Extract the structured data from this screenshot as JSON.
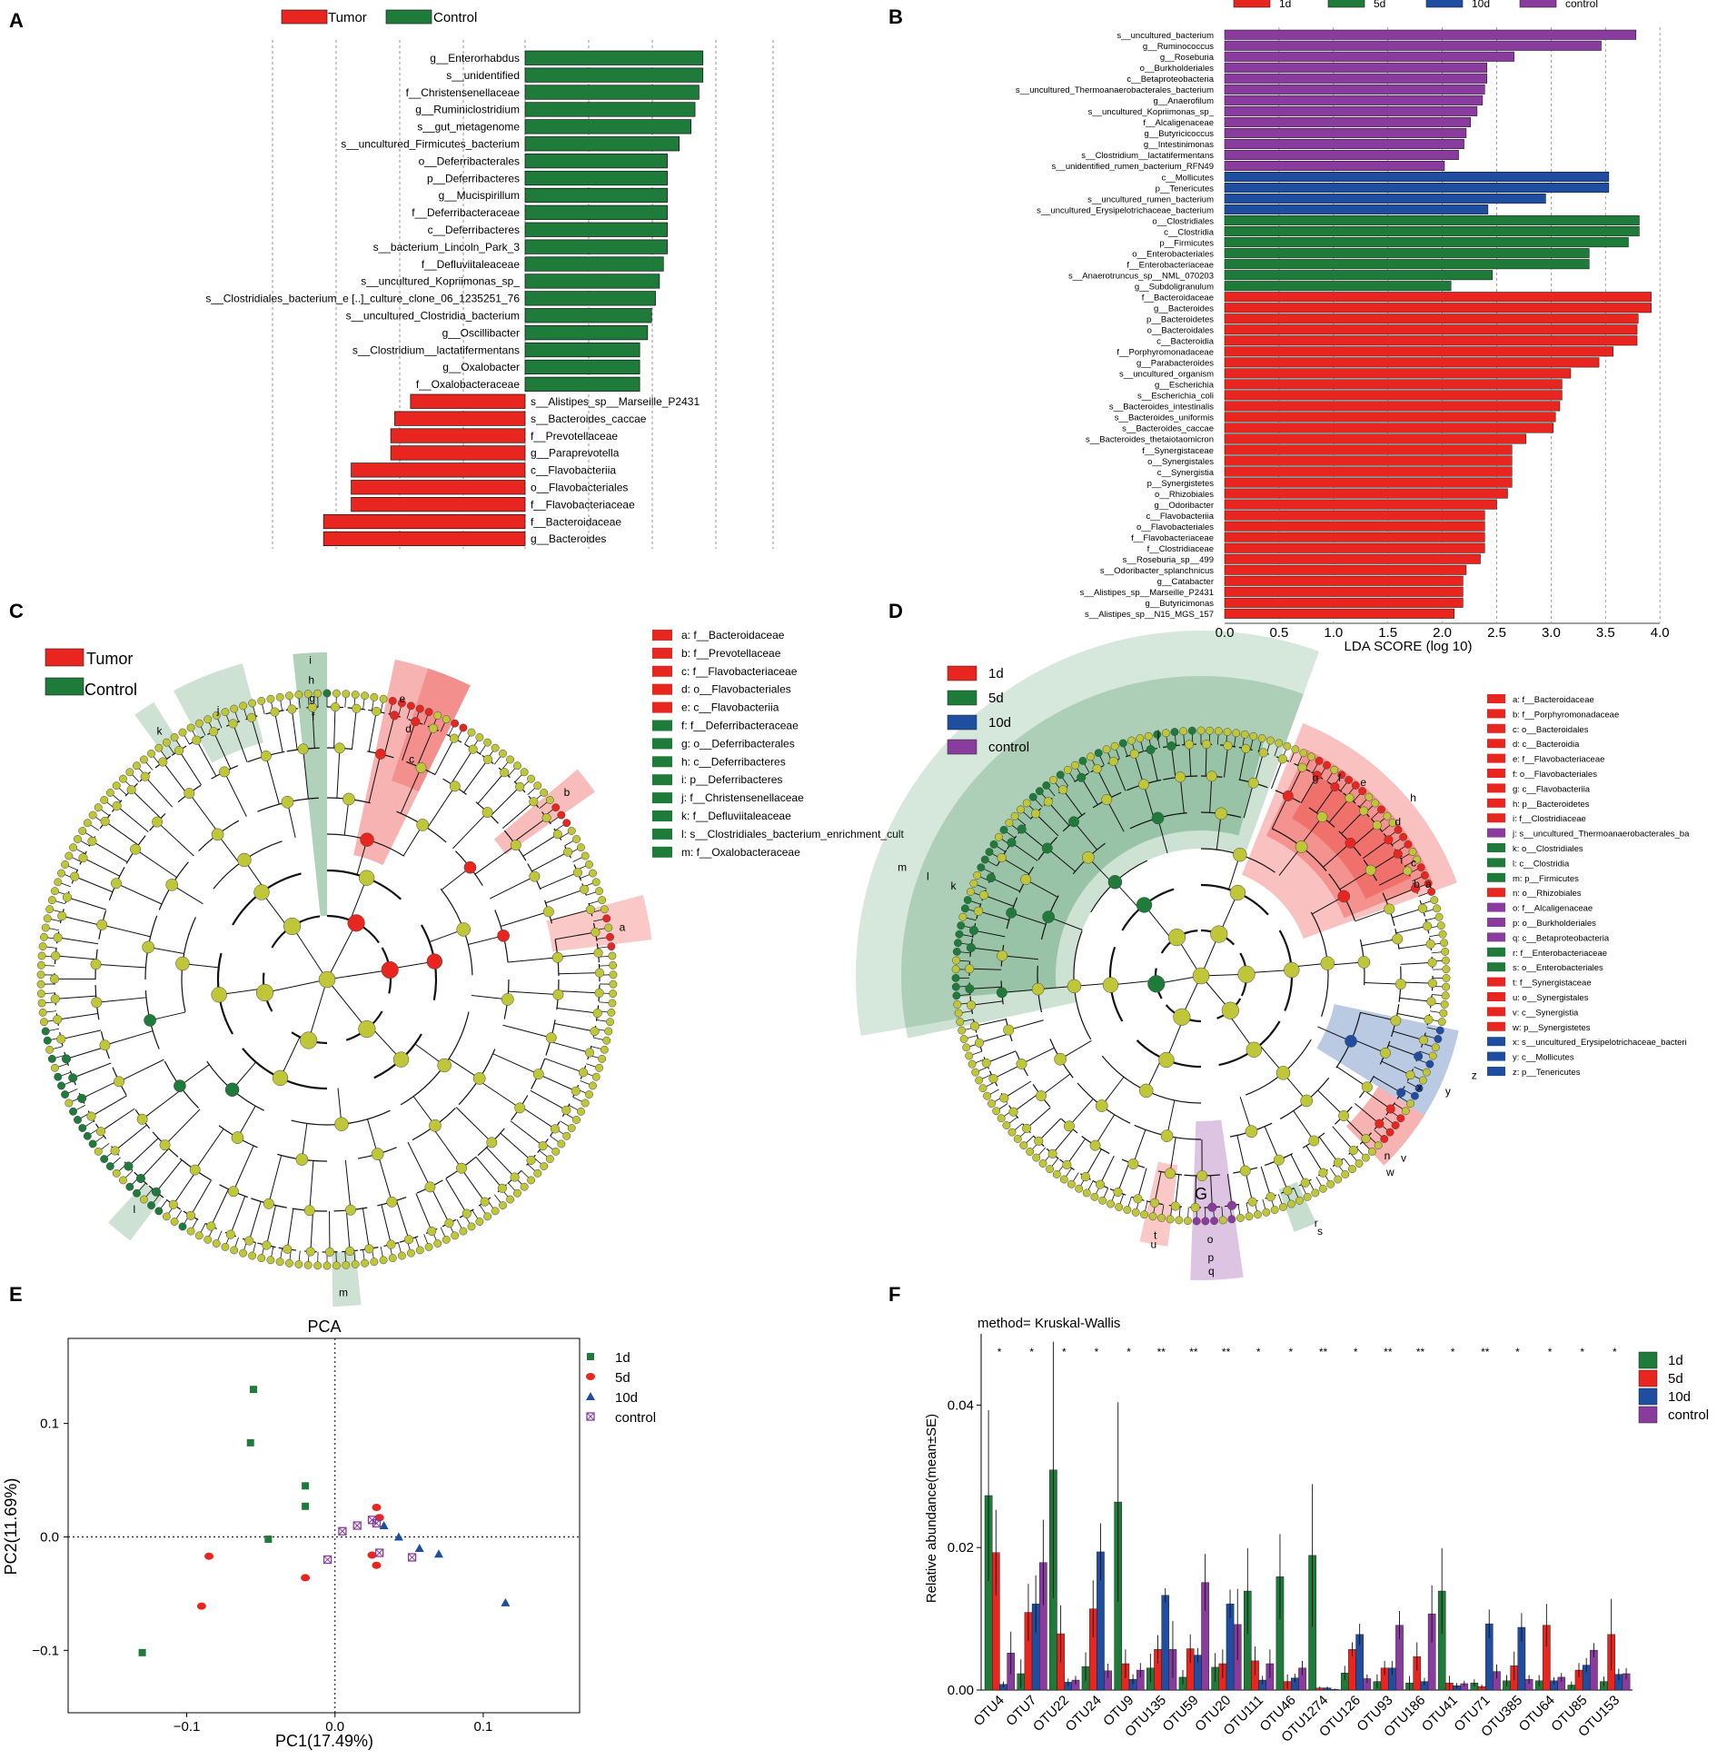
{
  "panels": {
    "A": "A",
    "B": "B",
    "C": "C",
    "D": "D",
    "E": "E",
    "F": "F"
  },
  "colors": {
    "green": "#1e7b3a",
    "red": "#e8251f",
    "blue": "#1f4ea1",
    "purple": "#8a3c9e",
    "olive": "#bfc637"
  },
  "chart_data": [
    {
      "id": "A",
      "type": "bar",
      "title": "",
      "legend": [
        "Tumor",
        "Control"
      ],
      "series": [
        {
          "name": "Control",
          "categories": [
            "g__Enterorhabdus",
            "s__unidentified",
            "f__Christensenellaceae",
            "g__Ruminiclostridium",
            "s__gut_metagenome",
            "s__uncultured_Firmicutes_bacterium",
            "o__Deferribacterales",
            "p__Deferribacteres",
            "g__Mucispirillum",
            "f__Deferribacteraceae",
            "c__Deferribacteres",
            "s__bacterium_Lincoln_Park_3",
            "f__Defluviitaleaceae",
            "s__uncultured_Kopriimonas_sp_",
            "s__Clostridiales_bacterium_e [..]_culture_clone_06_1235251_76",
            "s__uncultured_Clostridia_bacterium",
            "g__Oscillibacter",
            "s__Clostridium__lactatifermentans",
            "g__Oxalobacter",
            "f__Oxalobacteraceae"
          ],
          "values": [
            4.5,
            4.5,
            4.4,
            4.3,
            4.2,
            3.9,
            3.6,
            3.6,
            3.6,
            3.6,
            3.6,
            3.6,
            3.5,
            3.4,
            3.3,
            3.2,
            3.1,
            2.9,
            2.9,
            2.9
          ]
        },
        {
          "name": "Tumor",
          "categories": [
            "s__Alistipes_sp__Marseille_P2431",
            "s__Bacteroides_caccae",
            "f__Prevotellaceae",
            "g__Paraprevotella",
            "c__Flavobacteriia",
            "o__Flavobacteriales",
            "f__Flavobacteriaceae",
            "f__Bacteroidaceae",
            "g__Bacteroides"
          ],
          "values": [
            2.9,
            3.3,
            3.4,
            3.4,
            4.4,
            4.4,
            4.4,
            5.1,
            5.1
          ]
        }
      ]
    },
    {
      "id": "B",
      "type": "bar",
      "xlabel": "LDA SCORE (log 10)",
      "xlim": [
        0,
        4.0
      ],
      "ticks": [
        "0.0",
        "0.5",
        "1.0",
        "1.5",
        "2.0",
        "2.5",
        "3.0",
        "3.5",
        "4.0"
      ],
      "legend": [
        "1d",
        "5d",
        "10d",
        "control"
      ],
      "categories": [
        "s__uncultured_bacterium",
        "g__Ruminococcus",
        "g__Roseburia",
        "o__Burkholderiales",
        "c__Betaproteobacteria",
        "s__uncultured_Thermoanaerobacterales_bacterium",
        "g__Anaerofilum",
        "s__uncultured_Kopriimonas_sp_",
        "f__Alcaligenaceae",
        "g__Butyricicoccus",
        "g__Intestinimonas",
        "s__Clostridium__lactatifermentans",
        "s__unidentified_rumen_bacterium_RFN49",
        "c__Mollicutes",
        "p__Tenericutes",
        "s__uncultured_rumen_bacterium",
        "s__uncultured_Erysipelotrichaceae_bacterium",
        "o__Clostridiales",
        "c__Clostridia",
        "p__Firmicutes",
        "o__Enterobacteriales",
        "f__Enterobacteriaceae",
        "s__Anaerotruncus_sp__NML_070203",
        "g__Subdoligranulum",
        "f__Bacteroidaceae",
        "g__Bacteroides",
        "p__Bacteroidetes",
        "o__Bacteroidales",
        "c__Bacteroidia",
        "f__Porphyromonadaceae",
        "g__Parabacteroides",
        "s__uncultured_organism",
        "g__Escherichia",
        "s__Escherichia_coli",
        "s__Bacteroides_intestinalis",
        "s__Bacteroides_uniformis",
        "s__Bacteroides_caccae",
        "s__Bacteroides_thetaiotaomicron",
        "f__Synergistaceae",
        "o__Synergistales",
        "c__Synergistia",
        "p__Synergistetes",
        "o__Rhizobiales",
        "g__Odoribacter",
        "c__Flavobacteriia",
        "o__Flavobacteriales",
        "f__Flavobacteriaceae",
        "f__Clostridiaceae",
        "s__Roseburia_sp__499",
        "s__Odoribacter_splanchnicus",
        "g__Catabacter",
        "s__Alistipes_sp__Marseille_P2431",
        "g__Butyricimonas",
        "s__Alistipes_sp__N15_MGS_157"
      ],
      "values": [
        3.78,
        3.46,
        2.66,
        2.41,
        2.41,
        2.39,
        2.37,
        2.32,
        2.26,
        2.22,
        2.2,
        2.15,
        2.02,
        3.53,
        3.53,
        2.95,
        2.42,
        3.81,
        3.81,
        3.71,
        3.35,
        3.35,
        2.46,
        2.08,
        3.92,
        3.92,
        3.8,
        3.79,
        3.79,
        3.57,
        3.44,
        3.18,
        3.1,
        3.1,
        3.08,
        3.04,
        3.02,
        2.77,
        2.64,
        2.64,
        2.64,
        2.64,
        2.6,
        2.5,
        2.39,
        2.39,
        2.39,
        2.39,
        2.35,
        2.22,
        2.19,
        2.19,
        2.19,
        2.11
      ],
      "groups": [
        "control",
        "control",
        "control",
        "control",
        "control",
        "control",
        "control",
        "control",
        "control",
        "control",
        "control",
        "control",
        "control",
        "10d",
        "10d",
        "10d",
        "10d",
        "5d",
        "5d",
        "5d",
        "5d",
        "5d",
        "5d",
        "5d",
        "1d",
        "1d",
        "1d",
        "1d",
        "1d",
        "1d",
        "1d",
        "1d",
        "1d",
        "1d",
        "1d",
        "1d",
        "1d",
        "1d",
        "1d",
        "1d",
        "1d",
        "1d",
        "1d",
        "1d",
        "1d",
        "1d",
        "1d",
        "1d",
        "1d",
        "1d",
        "1d",
        "1d",
        "1d",
        "1d"
      ]
    },
    {
      "id": "C",
      "type": "cladogram",
      "legend_groups": [
        "Tumor",
        "Control"
      ],
      "clade_keys": [
        {
          "key": "a: f__Bacteroidaceae",
          "group": "Tumor"
        },
        {
          "key": "b: f__Prevotellaceae",
          "group": "Tumor"
        },
        {
          "key": "c: f__Flavobacteriaceae",
          "group": "Tumor"
        },
        {
          "key": "d: o__Flavobacteriales",
          "group": "Tumor"
        },
        {
          "key": "e: c__Flavobacteriia",
          "group": "Tumor"
        },
        {
          "key": "f: f__Deferribacteraceae",
          "group": "Control"
        },
        {
          "key": "g: o__Deferribacterales",
          "group": "Control"
        },
        {
          "key": "h: c__Deferribacteres",
          "group": "Control"
        },
        {
          "key": "i: p__Deferribacteres",
          "group": "Control"
        },
        {
          "key": "j: f__Christensenellaceae",
          "group": "Control"
        },
        {
          "key": "k: f__Defluviitaleaceae",
          "group": "Control"
        },
        {
          "key": "l: s__Clostridiales_bacterium_enrichment_cult",
          "group": "Control"
        },
        {
          "key": "m: f__Oxalobacteraceae",
          "group": "Control"
        }
      ],
      "sector_letters": [
        "a",
        "b",
        "c",
        "d",
        "e",
        "f",
        "g",
        "h",
        "i",
        "j",
        "k",
        "l",
        "m"
      ]
    },
    {
      "id": "D",
      "type": "cladogram",
      "legend_groups": [
        "1d",
        "5d",
        "10d",
        "control"
      ],
      "clade_keys": [
        {
          "key": "a: f__Bacteroidaceae",
          "group": "1d"
        },
        {
          "key": "b: f__Porphyromonadaceae",
          "group": "1d"
        },
        {
          "key": "c: o__Bacteroidales",
          "group": "1d"
        },
        {
          "key": "d: c__Bacteroidia",
          "group": "1d"
        },
        {
          "key": "e: f__Flavobacteriaceae",
          "group": "1d"
        },
        {
          "key": "f: o__Flavobacteriales",
          "group": "1d"
        },
        {
          "key": "g: c__Flavobacteriia",
          "group": "1d"
        },
        {
          "key": "h: p__Bacteroidetes",
          "group": "1d"
        },
        {
          "key": "i: f__Clostridiaceae",
          "group": "1d"
        },
        {
          "key": "j: s__uncultured_Thermoanaerobacterales_ba",
          "group": "control"
        },
        {
          "key": "k: o__Clostridiales",
          "group": "5d"
        },
        {
          "key": "l: c__Clostridia",
          "group": "5d"
        },
        {
          "key": "m: p__Firmicutes",
          "group": "5d"
        },
        {
          "key": "n: o__Rhizobiales",
          "group": "1d"
        },
        {
          "key": "o: f__Alcaligenaceae",
          "group": "control"
        },
        {
          "key": "p: o__Burkholderiales",
          "group": "control"
        },
        {
          "key": "q: c__Betaproteobacteria",
          "group": "control"
        },
        {
          "key": "r: f__Enterobacteriaceae",
          "group": "5d"
        },
        {
          "key": "s: o__Enterobacteriales",
          "group": "5d"
        },
        {
          "key": "t: f__Synergistaceae",
          "group": "1d"
        },
        {
          "key": "u: o__Synergistales",
          "group": "1d"
        },
        {
          "key": "v: c__Synergistia",
          "group": "1d"
        },
        {
          "key": "w: p__Synergistetes",
          "group": "1d"
        },
        {
          "key": "x: s__uncultured_Erysipelotrichaceae_bacteri",
          "group": "10d"
        },
        {
          "key": "y: c__Mollicutes",
          "group": "10d"
        },
        {
          "key": "z: p__Tenericutes",
          "group": "10d"
        }
      ],
      "sector_letters": [
        "a",
        "b",
        "c",
        "d",
        "e",
        "f",
        "g",
        "h",
        "i",
        "j",
        "k",
        "l",
        "m",
        "n",
        "o",
        "p",
        "q",
        "r",
        "s",
        "t",
        "u",
        "v",
        "w",
        "x",
        "y",
        "z"
      ],
      "annotation": "G"
    },
    {
      "id": "E",
      "type": "scatter",
      "title": "PCA",
      "xlabel": "PC1(17.49%)",
      "ylabel": "PC2(11.69%)",
      "xlim": [
        -0.18,
        0.165
      ],
      "ylim": [
        -0.155,
        0.175
      ],
      "xticks": [
        -0.1,
        0.0,
        0.1
      ],
      "xtick_labels": [
        "−0.1",
        "0.0",
        "0.1"
      ],
      "yticks": [
        -0.1,
        0.0,
        0.1
      ],
      "ytick_labels": [
        "−0.1",
        "0.0",
        "0.1"
      ],
      "series": [
        {
          "name": "1d",
          "marker": "square",
          "points": [
            [
              -0.055,
              0.13
            ],
            [
              -0.057,
              0.083
            ],
            [
              -0.02,
              0.045
            ],
            [
              -0.02,
              0.027
            ],
            [
              -0.045,
              -0.002
            ],
            [
              -0.13,
              -0.102
            ]
          ]
        },
        {
          "name": "5d",
          "marker": "circle",
          "points": [
            [
              -0.085,
              -0.017
            ],
            [
              -0.09,
              -0.061
            ],
            [
              -0.02,
              -0.036
            ],
            [
              0.028,
              0.026
            ],
            [
              0.03,
              0.017
            ],
            [
              0.025,
              -0.016
            ],
            [
              0.028,
              -0.025
            ]
          ]
        },
        {
          "name": "10d",
          "marker": "triangle",
          "points": [
            [
              0.033,
              0.01
            ],
            [
              0.043,
              0.0
            ],
            [
              0.057,
              -0.01
            ],
            [
              0.07,
              -0.015
            ],
            [
              0.115,
              -0.058
            ]
          ]
        },
        {
          "name": "control",
          "marker": "boxx",
          "points": [
            [
              0.005,
              0.005
            ],
            [
              0.015,
              0.01
            ],
            [
              0.025,
              0.015
            ],
            [
              0.028,
              0.012
            ],
            [
              -0.005,
              -0.02
            ],
            [
              0.03,
              -0.014
            ],
            [
              0.052,
              -0.018
            ]
          ]
        }
      ]
    },
    {
      "id": "F",
      "type": "bar",
      "title": "method= Kruskal-Wallis",
      "ylabel": "Relative abundance(mean±SE)",
      "ylim": [
        0,
        0.05
      ],
      "yticks": [
        0.0,
        0.02,
        0.04
      ],
      "ytick_labels": [
        "0.00",
        "0.02",
        "0.04"
      ],
      "categories": [
        "OTU4",
        "OTU7",
        "OTU22",
        "OTU24",
        "OTU9",
        "OTU135",
        "OTU59",
        "OTU20",
        "OTU111",
        "OTU46",
        "OTU1274",
        "OTU126",
        "OTU93",
        "OTU186",
        "OTU41",
        "OTU71",
        "OTU385",
        "OTU64",
        "OTU85",
        "OTU153"
      ],
      "significance": [
        "*",
        "*",
        "*",
        "*",
        "*",
        "**",
        "**",
        "**",
        "*",
        "*",
        "**",
        "*",
        "**",
        "**",
        "*",
        "**",
        "*",
        "*",
        "*",
        "*"
      ],
      "series": [
        {
          "name": "1d",
          "values": [
            0.0273,
            0.0023,
            0.0309,
            0.0033,
            0.0264,
            0.0031,
            0.0018,
            0.0032,
            0.0139,
            0.0159,
            0.0189,
            0.0024,
            0.0012,
            0.001,
            0.0139,
            0.001,
            0.0013,
            0.0013,
            0.0007,
            0.0012
          ],
          "errors": [
            0.012,
            0.002,
            0.018,
            0.002,
            0.014,
            0.002,
            0.001,
            0.002,
            0.006,
            0.006,
            0.01,
            0.001,
            0.001,
            0.001,
            0.006,
            0.0005,
            0.0008,
            0.0008,
            0.0005,
            0.0007
          ]
        },
        {
          "name": "5d",
          "values": [
            0.0193,
            0.0109,
            0.0079,
            0.0114,
            0.0037,
            0.0057,
            0.0058,
            0.0037,
            0.0041,
            0.0012,
            0.0003,
            0.0057,
            0.0031,
            0.0047,
            0.001,
            0.0005,
            0.0034,
            0.0091,
            0.0028,
            0.0078
          ],
          "errors": [
            0.006,
            0.004,
            0.004,
            0.004,
            0.002,
            0.002,
            0.002,
            0.002,
            0.002,
            0.001,
            0.0002,
            0.001,
            0.001,
            0.002,
            0.001,
            0.0003,
            0.002,
            0.003,
            0.001,
            0.005
          ]
        },
        {
          "name": "10d",
          "values": [
            0.0008,
            0.0121,
            0.0011,
            0.0194,
            0.0015,
            0.0133,
            0.0049,
            0.0121,
            0.0014,
            0.0017,
            0.0003,
            0.0078,
            0.0031,
            0.0012,
            0.0006,
            0.0093,
            0.0088,
            0.0013,
            0.0035,
            0.0022
          ],
          "errors": [
            0.0004,
            0.004,
            0.0005,
            0.004,
            0.0007,
            0.001,
            0.001,
            0.002,
            0.0006,
            0.0006,
            0.0002,
            0.0015,
            0.001,
            0.0005,
            0.0004,
            0.002,
            0.002,
            0.0005,
            0.001,
            0.0008
          ],
          "_note": "values read off bar heights"
        },
        {
          "name": "control",
          "values": [
            0.0052,
            0.0179,
            0.0014,
            0.0027,
            0.0028,
            0.0057,
            0.0151,
            0.0092,
            0.0037,
            0.0031,
            0.0001,
            0.0016,
            0.0091,
            0.0107,
            0.0009,
            0.0026,
            0.0015,
            0.0018,
            0.0056,
            0.0023
          ],
          "errors": [
            0.003,
            0.006,
            0.0006,
            0.001,
            0.001,
            0.004,
            0.004,
            0.005,
            0.002,
            0.001,
            0.0001,
            0.0006,
            0.002,
            0.004,
            0.0004,
            0.001,
            0.0006,
            0.0006,
            0.001,
            0.0008
          ]
        }
      ],
      "legend": [
        "1d",
        "5d",
        "10d",
        "control"
      ]
    }
  ]
}
